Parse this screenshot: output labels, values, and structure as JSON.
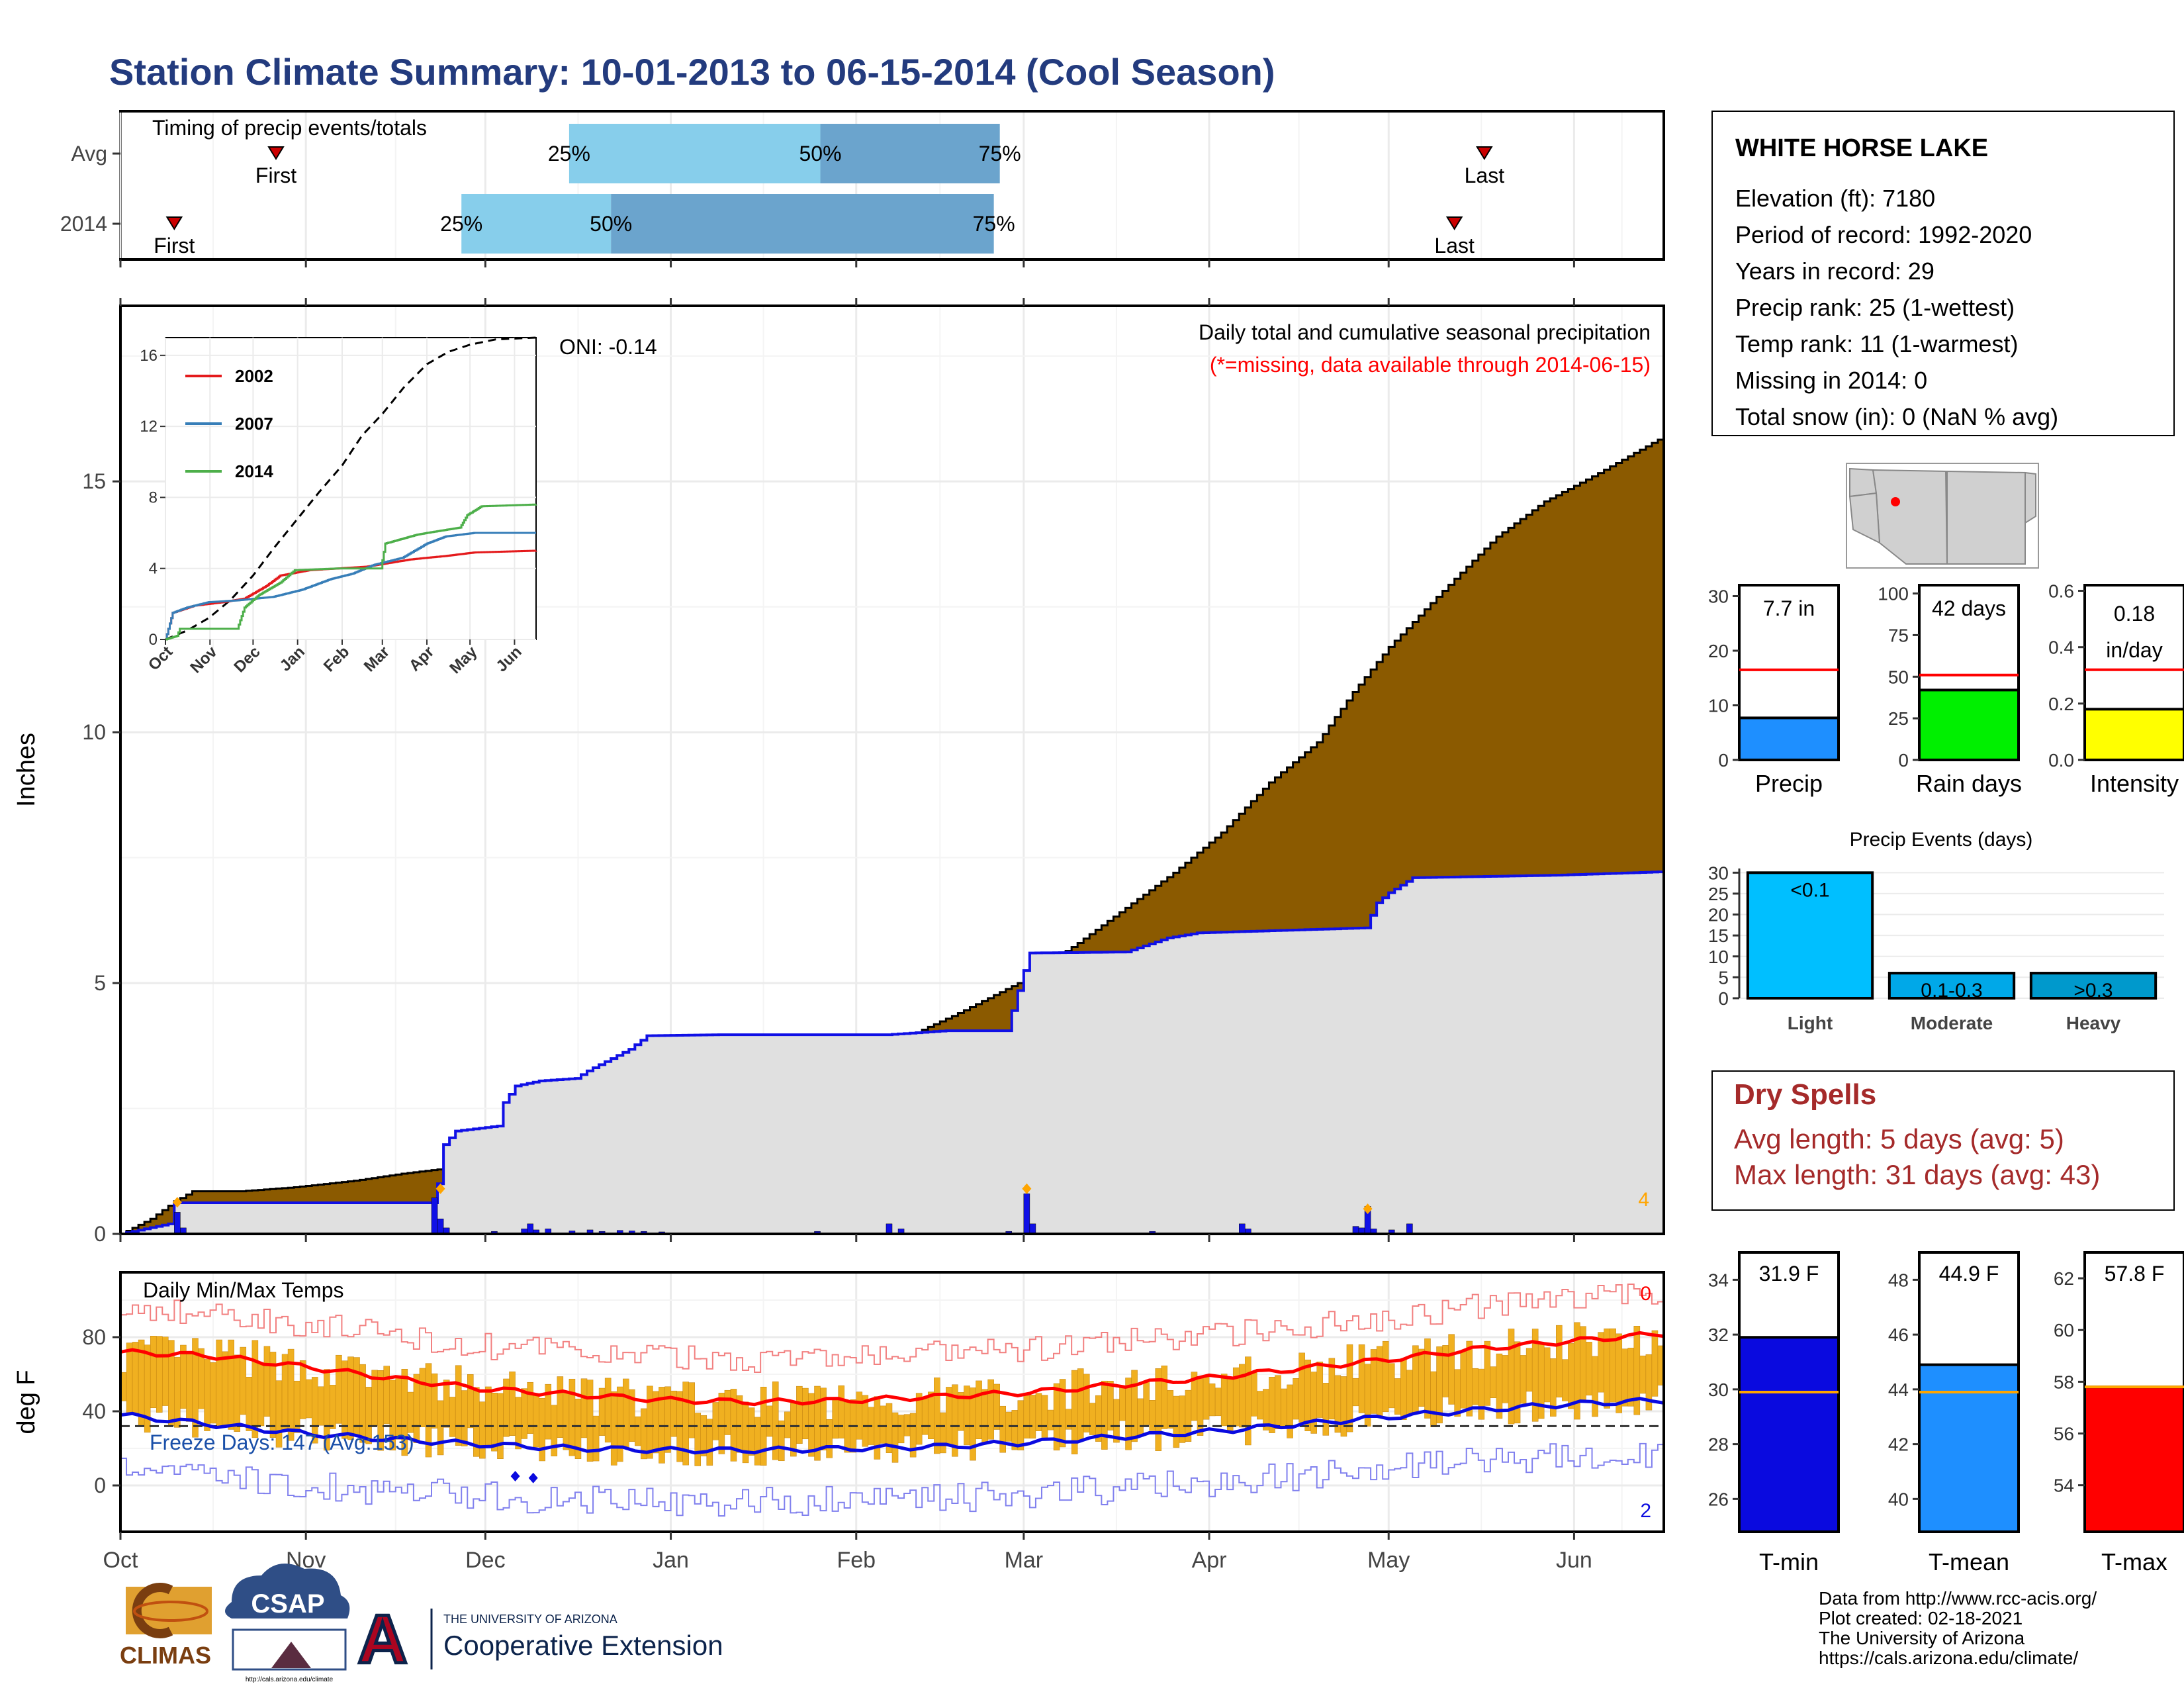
{
  "page": {
    "title": "Station Climate Summary: 10-01-2013 to 06-15-2014 (Cool Season)",
    "footer_lines": [
      "Data from http://www.rcc-acis.org/",
      "Plot created: 02-18-2021",
      "The University of Arizona",
      "https://cals.arizona.edu/climate/"
    ],
    "logos": {
      "climas": "CLIMAS",
      "csap": "CSAP",
      "csap_url": "http://cals.arizona.edu/climate",
      "ua_small": "THE UNIVERSITY OF ARIZONA",
      "ua_big": "Cooperative Extension"
    }
  },
  "colors": {
    "title": "#233b7e",
    "cum_2014": "#8b5a00",
    "cum_avg_fill": "#e0e0e0",
    "line_blue": "#1010e6",
    "tmin": "#0a0adf",
    "tmean": "#1e8fff",
    "tmax": "#ff0000",
    "precip_bar": "#1e8fff",
    "raindays_bar": "#00f000",
    "intensity_bar": "#ffff00",
    "light": "#00bfff",
    "moderate": "#00a8e8",
    "heavy": "#0099cc",
    "dry": "#a52a2a",
    "band_light": "#87ceeb",
    "band_dark": "#6ba4cd",
    "orange": "#ffa500",
    "temp_bar": "#f0b020"
  },
  "station": {
    "name": "WHITE HORSE LAKE",
    "lines": [
      "Elevation (ft): 7180",
      "Period of record: 1992-2020",
      "Years in record: 29",
      "Precip rank: 25 (1-wettest)",
      "Temp rank: 11 (1-warmest)",
      "Missing in 2014: 0",
      "Total snow (in): 0 (NaN % avg)"
    ]
  },
  "timing": {
    "title": "Timing of precip events/totals",
    "rows": [
      {
        "label": "Avg",
        "first_day": 26,
        "last_day": 228,
        "p25_day": 75,
        "p50_day": 117,
        "p75_day": 147,
        "first_label": "First",
        "last_label": "Last",
        "p25_label": "25%",
        "p50_label": "50%",
        "p75_label": "75%"
      },
      {
        "label": "2014",
        "first_day": 9,
        "last_day": 223,
        "p25_day": 57,
        "p50_day": 82,
        "p75_day": 146,
        "first_label": "First",
        "last_label": "Last",
        "p25_label": "25%",
        "p50_label": "50%",
        "p75_label": "75%"
      }
    ]
  },
  "months": {
    "labels": [
      "Oct",
      "Nov",
      "Dec",
      "Jan",
      "Feb",
      "Mar",
      "Apr",
      "May",
      "Jun"
    ],
    "start_days": [
      0,
      31,
      61,
      92,
      123,
      151,
      182,
      212,
      243
    ],
    "season_days": 258
  },
  "precip_main": {
    "ylabel": "Inches",
    "yticks": [
      0,
      5,
      10,
      15
    ],
    "ymax": 18.5,
    "label_title": "Daily total and cumulative seasonal precipitation",
    "label_missing": "(*=missing, data available through 2014-06-15)",
    "oni": "ONI: -0.14",
    "count_label": "4",
    "cum_avg": [
      [
        0,
        0
      ],
      [
        5,
        0.3
      ],
      [
        9,
        0.65
      ],
      [
        12,
        0.85
      ],
      [
        20,
        0.85
      ],
      [
        29,
        0.93
      ],
      [
        39,
        1.06
      ],
      [
        47,
        1.2
      ],
      [
        54,
        1.3
      ],
      [
        62,
        1.5
      ],
      [
        70,
        1.7
      ],
      [
        80,
        2.0
      ],
      [
        92,
        2.4
      ],
      [
        100,
        2.7
      ],
      [
        110,
        3.0
      ],
      [
        120,
        3.4
      ],
      [
        130,
        3.85
      ],
      [
        140,
        4.4
      ],
      [
        150,
        5.0
      ],
      [
        160,
        5.8
      ],
      [
        168,
        6.5
      ],
      [
        176,
        7.2
      ],
      [
        184,
        8.0
      ],
      [
        192,
        9.0
      ],
      [
        200,
        9.8
      ],
      [
        206,
        10.8
      ],
      [
        212,
        11.7
      ],
      [
        220,
        12.7
      ],
      [
        230,
        13.9
      ],
      [
        238,
        14.6
      ],
      [
        246,
        15.1
      ],
      [
        252,
        15.5
      ],
      [
        258,
        15.9
      ]
    ],
    "cum_2014": [
      [
        0,
        0
      ],
      [
        8,
        0.2
      ],
      [
        9,
        0.62
      ],
      [
        10,
        0.62
      ],
      [
        20,
        0.62
      ],
      [
        42,
        0.62
      ],
      [
        52,
        0.62
      ],
      [
        53,
        1.0
      ],
      [
        54,
        1.78
      ],
      [
        56,
        2.05
      ],
      [
        63,
        2.15
      ],
      [
        64,
        2.62
      ],
      [
        66,
        2.95
      ],
      [
        70,
        3.05
      ],
      [
        76,
        3.1
      ],
      [
        78,
        3.25
      ],
      [
        85,
        3.68
      ],
      [
        88,
        3.95
      ],
      [
        100,
        3.97
      ],
      [
        128,
        3.97
      ],
      [
        138,
        4.05
      ],
      [
        148,
        4.05
      ],
      [
        151,
        5.25
      ],
      [
        152,
        5.6
      ],
      [
        168,
        5.62
      ],
      [
        175,
        5.9
      ],
      [
        180,
        6.0
      ],
      [
        208,
        6.1
      ],
      [
        210,
        6.6
      ],
      [
        212,
        6.8
      ],
      [
        216,
        7.1
      ],
      [
        240,
        7.15
      ],
      [
        258,
        7.22
      ]
    ],
    "daily_2014": [
      [
        9,
        0.43
      ],
      [
        10,
        0.12
      ],
      [
        52,
        0.72
      ],
      [
        53,
        0.3
      ],
      [
        54,
        0.12
      ],
      [
        62,
        0.05
      ],
      [
        67,
        0.1
      ],
      [
        68,
        0.2
      ],
      [
        69,
        0.08
      ],
      [
        71,
        0.1
      ],
      [
        75,
        0.06
      ],
      [
        78,
        0.08
      ],
      [
        80,
        0.05
      ],
      [
        83,
        0.07
      ],
      [
        85,
        0.06
      ],
      [
        87,
        0.05
      ],
      [
        90,
        0.04
      ],
      [
        116,
        0.05
      ],
      [
        128,
        0.2
      ],
      [
        130,
        0.1
      ],
      [
        148,
        0.05
      ],
      [
        151,
        0.8
      ],
      [
        152,
        0.2
      ],
      [
        172,
        0.05
      ],
      [
        187,
        0.2
      ],
      [
        188,
        0.1
      ],
      [
        206,
        0.15
      ],
      [
        207,
        0.12
      ],
      [
        208,
        0.55
      ],
      [
        209,
        0.1
      ],
      [
        212,
        0.08
      ],
      [
        215,
        0.2
      ]
    ],
    "diamonds": [
      [
        9,
        0.63
      ],
      [
        53,
        0.9
      ],
      [
        151,
        0.9
      ],
      [
        208,
        0.5
      ]
    ]
  },
  "inset": {
    "yticks": [
      0,
      4,
      8,
      12,
      16
    ],
    "ymax": 17,
    "legend": [
      "2002",
      "2007",
      "2014"
    ],
    "mean": [
      [
        0,
        0
      ],
      [
        15,
        0.5
      ],
      [
        30,
        1.2
      ],
      [
        45,
        2.2
      ],
      [
        61,
        3.6
      ],
      [
        76,
        5.2
      ],
      [
        92,
        6.8
      ],
      [
        107,
        8.3
      ],
      [
        123,
        9.8
      ],
      [
        137,
        11.5
      ],
      [
        151,
        12.7
      ],
      [
        166,
        14.2
      ],
      [
        182,
        15.5
      ],
      [
        197,
        16.2
      ],
      [
        212,
        16.6
      ],
      [
        230,
        16.9
      ],
      [
        258,
        17.0
      ]
    ],
    "series": [
      {
        "name": "2002",
        "color": "#e41a1c",
        "points": [
          [
            0,
            0
          ],
          [
            5,
            1.5
          ],
          [
            20,
            1.9
          ],
          [
            40,
            2.1
          ],
          [
            55,
            2.3
          ],
          [
            70,
            3.0
          ],
          [
            80,
            3.6
          ],
          [
            100,
            3.9
          ],
          [
            120,
            4.0
          ],
          [
            140,
            4.1
          ],
          [
            155,
            4.3
          ],
          [
            170,
            4.5
          ],
          [
            182,
            4.6
          ],
          [
            195,
            4.7
          ],
          [
            215,
            4.9
          ],
          [
            258,
            5.0
          ]
        ]
      },
      {
        "name": "2007",
        "color": "#377eb8",
        "points": [
          [
            0,
            0
          ],
          [
            5,
            1.5
          ],
          [
            15,
            1.8
          ],
          [
            30,
            2.1
          ],
          [
            50,
            2.2
          ],
          [
            75,
            2.4
          ],
          [
            95,
            2.8
          ],
          [
            115,
            3.4
          ],
          [
            130,
            3.7
          ],
          [
            145,
            4.2
          ],
          [
            165,
            4.6
          ],
          [
            182,
            5.4
          ],
          [
            195,
            5.8
          ],
          [
            215,
            6.0
          ],
          [
            258,
            6.0
          ]
        ]
      },
      {
        "name": "2014",
        "color": "#4daf4a",
        "points": [
          [
            0,
            0
          ],
          [
            8,
            0.2
          ],
          [
            10,
            0.6
          ],
          [
            50,
            0.6
          ],
          [
            55,
            1.8
          ],
          [
            65,
            2.5
          ],
          [
            80,
            3.2
          ],
          [
            90,
            3.9
          ],
          [
            120,
            4.0
          ],
          [
            150,
            4.0
          ],
          [
            153,
            5.4
          ],
          [
            175,
            5.9
          ],
          [
            182,
            6.0
          ],
          [
            205,
            6.3
          ],
          [
            210,
            7.0
          ],
          [
            220,
            7.5
          ],
          [
            258,
            7.6
          ]
        ]
      }
    ]
  },
  "temps": {
    "title": "Daily Min/Max Temps",
    "ylabel": "deg F",
    "yticks": [
      0,
      40,
      80
    ],
    "ymin": -25,
    "ymax": 115,
    "freeze_label": "Freeze Days: 147 (Avg:153)",
    "max_count_label": "0",
    "min_count_label": "2",
    "freeze_line": 32,
    "avg_max": [
      [
        0,
        72
      ],
      [
        15,
        70
      ],
      [
        31,
        64
      ],
      [
        45,
        58
      ],
      [
        61,
        52
      ],
      [
        76,
        49
      ],
      [
        92,
        46
      ],
      [
        107,
        45
      ],
      [
        123,
        46
      ],
      [
        137,
        48
      ],
      [
        151,
        50
      ],
      [
        166,
        54
      ],
      [
        182,
        58
      ],
      [
        197,
        63
      ],
      [
        212,
        68
      ],
      [
        228,
        74
      ],
      [
        243,
        78
      ],
      [
        258,
        82
      ]
    ],
    "avg_min": [
      [
        0,
        38
      ],
      [
        15,
        33
      ],
      [
        31,
        28
      ],
      [
        45,
        25
      ],
      [
        61,
        22
      ],
      [
        76,
        20
      ],
      [
        92,
        19
      ],
      [
        107,
        19
      ],
      [
        123,
        20
      ],
      [
        137,
        21
      ],
      [
        151,
        23
      ],
      [
        166,
        26
      ],
      [
        182,
        29
      ],
      [
        197,
        33
      ],
      [
        212,
        37
      ],
      [
        228,
        41
      ],
      [
        243,
        44
      ],
      [
        258,
        46
      ]
    ],
    "diamonds": [
      [
        66,
        5
      ],
      [
        69,
        4
      ]
    ]
  },
  "mini_bars": [
    {
      "label": "Precip",
      "value_label": "7.7 in",
      "value": 7.7,
      "avg": 16.5,
      "ymax": 32,
      "yticks": [
        0,
        10,
        20,
        30
      ],
      "color": "#1e8fff"
    },
    {
      "label": "Rain days",
      "value_label": "42 days",
      "value": 42,
      "avg": 51,
      "ymax": 105,
      "yticks": [
        0,
        25,
        50,
        75,
        100
      ],
      "color": "#00f000"
    },
    {
      "label": "Intensity",
      "value_label": "0.18",
      "value_label2": "in/day",
      "value": 0.18,
      "avg": 0.32,
      "ymax": 0.62,
      "yticks": [
        "0.0",
        "0.2",
        "0.4",
        "0.6"
      ],
      "color": "#ffff00"
    }
  ],
  "precip_events": {
    "title": "Precip Events (days)",
    "ymax": 31,
    "yticks": [
      0,
      5,
      10,
      15,
      20,
      25,
      30
    ],
    "bars": [
      {
        "label": "Light",
        "inner": "<0.1",
        "value": 30,
        "color": "#00bfff"
      },
      {
        "label": "Moderate",
        "inner": "0.1-0.3",
        "value": 6,
        "color": "#00a8e8"
      },
      {
        "label": "Heavy",
        "inner": ">0.3",
        "value": 6,
        "color": "#0099cc"
      }
    ]
  },
  "dry_spells": {
    "title": "Dry Spells",
    "lines": [
      "Avg length: 5 days (avg: 5)",
      "Max length: 31 days (avg: 43)"
    ]
  },
  "temp_bars": [
    {
      "label": "T-min",
      "value_label": "31.9 F",
      "value": 31.9,
      "avg": 29.9,
      "ymin": 24.8,
      "ymax": 35,
      "yticks": [
        26,
        28,
        30,
        32,
        34
      ],
      "color": "#0a0adf"
    },
    {
      "label": "T-mean",
      "value_label": "44.9 F",
      "value": 44.9,
      "avg": 43.9,
      "ymin": 38.8,
      "ymax": 49,
      "yticks": [
        40,
        42,
        44,
        46,
        48
      ],
      "color": "#1e8fff"
    },
    {
      "label": "T-max",
      "value_label": "57.8 F",
      "value": 57.8,
      "avg": 57.8,
      "ymin": 52.2,
      "ymax": 63,
      "yticks": [
        54,
        56,
        58,
        60,
        62
      ],
      "color": "#ff0000"
    }
  ]
}
